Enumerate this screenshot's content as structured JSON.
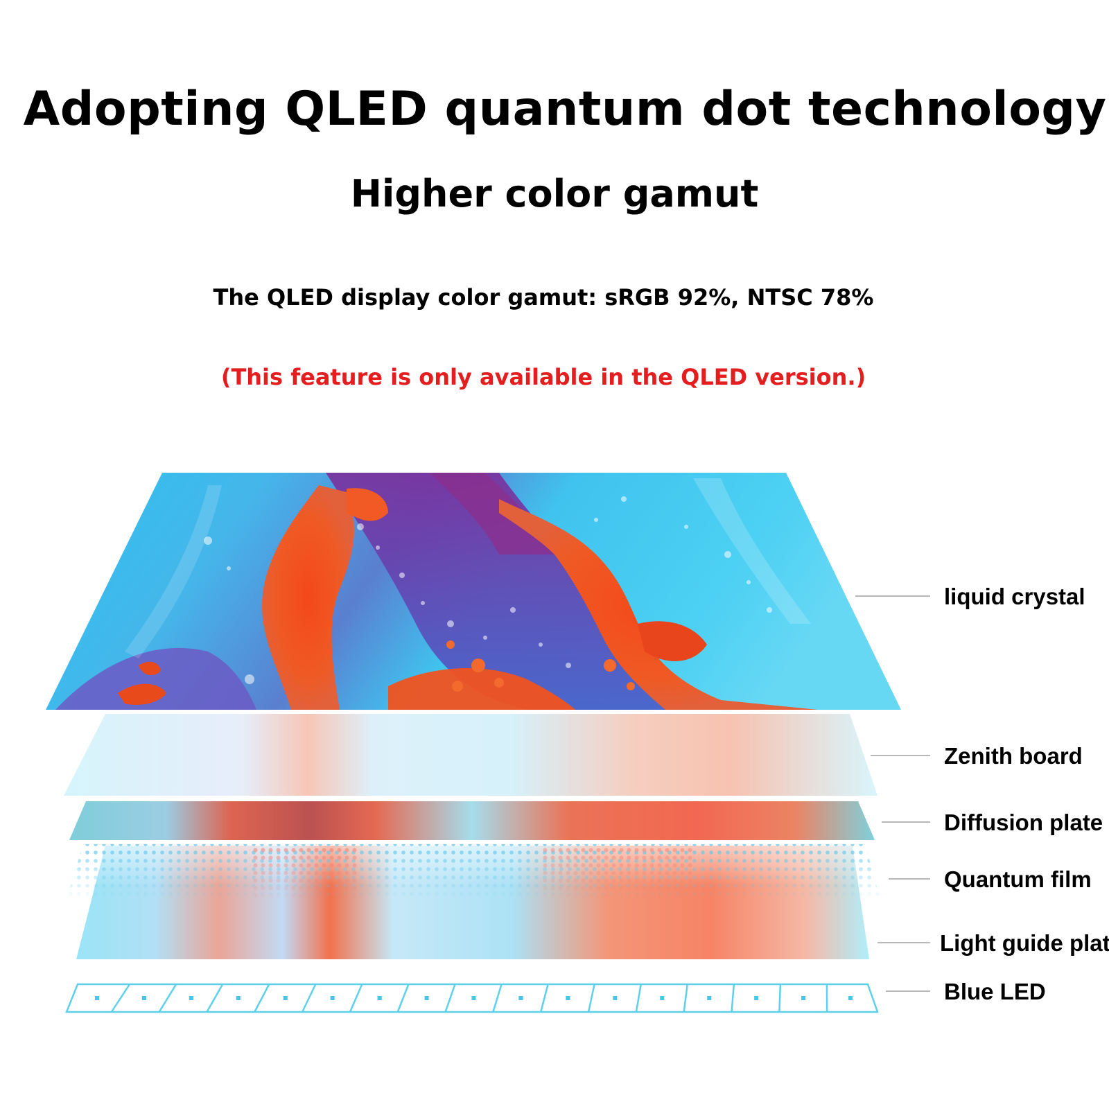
{
  "header": {
    "title": "Adopting QLED quantum dot technology",
    "subtitle": "Higher color gamut",
    "spec": "The QLED display color gamut: sRGB 92%, NTSC 78%",
    "note": "(This feature is only available in the QLED version.)"
  },
  "colors": {
    "note": "#e41e1e",
    "cyan": "#38c9f0",
    "orange": "#f05a22",
    "purple": "#7a3fa8",
    "leader": "#b8b8b8"
  },
  "layers": [
    {
      "id": "liquid-crystal",
      "label": "liquid crystal"
    },
    {
      "id": "zenith-board",
      "label": "Zenith board"
    },
    {
      "id": "diffusion-plate",
      "label": "Diffusion plate"
    },
    {
      "id": "quantum-film",
      "label": "Quantum film"
    },
    {
      "id": "light-guide-plate",
      "label": "Light guide plate"
    },
    {
      "id": "blue-led",
      "label": "Blue LED"
    }
  ]
}
